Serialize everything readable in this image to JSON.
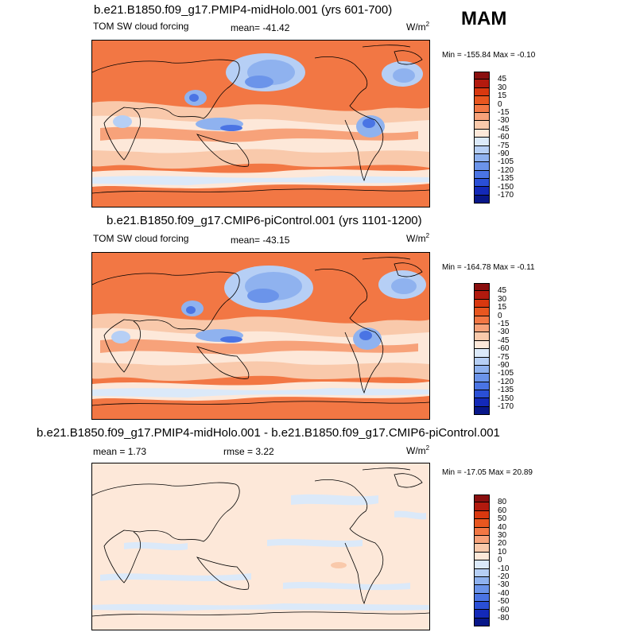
{
  "season": "MAM",
  "units": "W/m",
  "units_sup": "2",
  "panels": [
    {
      "title": "b.e21.B1850.f09_g17.PMIP4-midHolo.001 (yrs 601-700)",
      "left_label": "TOM SW cloud forcing",
      "center_label": "mean= -41.42",
      "minmax": "Min = -155.84 Max =  -0.10"
    },
    {
      "title": "b.e21.B1850.f09_g17.CMIP6-piControl.001 (yrs 1101-1200)",
      "left_label": "TOM SW cloud forcing",
      "center_label": "mean= -43.15",
      "minmax": "Min = -164.78 Max =  -0.11"
    },
    {
      "title": "b.e21.B1850.f09_g17.PMIP4-midHolo.001 - b.e21.B1850.f09_g17.CMIP6-piControl.001",
      "left_label": "mean =   1.73",
      "center_label": "rmse =   3.22",
      "minmax": "Min = -17.05 Max =  20.89"
    }
  ],
  "colorbar_abs": {
    "labels": [
      "45",
      "30",
      "15",
      "0",
      "-15",
      "-30",
      "-45",
      "-60",
      "-75",
      "-90",
      "-105",
      "-120",
      "-135",
      "-150",
      "-170"
    ],
    "colors": [
      "#8a0f0f",
      "#b21a0e",
      "#d9380f",
      "#e8561f",
      "#f27744",
      "#f7a27a",
      "#f9c9ab",
      "#fde8d9",
      "#dbe9f9",
      "#b6cff5",
      "#8fb2ef",
      "#6b94ea",
      "#4a74e4",
      "#2a4fd6",
      "#1329b8",
      "#081789"
    ]
  },
  "colorbar_diff": {
    "labels": [
      "80",
      "60",
      "50",
      "40",
      "30",
      "20",
      "10",
      "0",
      "-10",
      "-20",
      "-30",
      "-40",
      "-50",
      "-60",
      "-80"
    ],
    "colors": [
      "#8a0f0f",
      "#b21a0e",
      "#d9380f",
      "#e8561f",
      "#f27744",
      "#f7a27a",
      "#f9c9ab",
      "#fde8d9",
      "#dbe9f9",
      "#b6cff5",
      "#8fb2ef",
      "#6b94ea",
      "#4a74e4",
      "#2a4fd6",
      "#1329b8",
      "#081789"
    ]
  }
}
